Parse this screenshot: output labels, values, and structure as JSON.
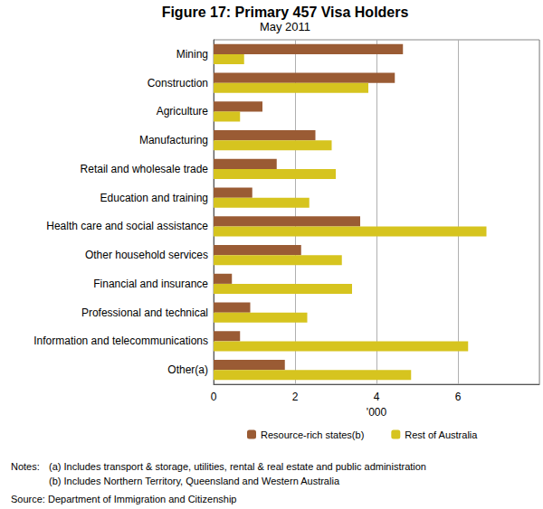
{
  "chart_data": {
    "type": "bar",
    "orientation": "horizontal",
    "title": "Figure 17: Primary 457 Visa Holders",
    "subtitle": "May 2011",
    "x_label": "'000",
    "categories": [
      "Mining",
      "Construction",
      "Agriculture",
      "Manufacturing",
      "Retail and wholesale trade",
      "Education and training",
      "Health care and social assistance",
      "Other household services",
      "Financial and insurance",
      "Professional and technical",
      "Information and telecommunications",
      "Other(a)"
    ],
    "series": [
      {
        "name": "Resource-rich states(b)",
        "color": "#9a5b34",
        "values": [
          4.65,
          4.45,
          1.2,
          2.5,
          1.55,
          0.95,
          3.6,
          2.15,
          0.45,
          0.9,
          0.65,
          1.75
        ]
      },
      {
        "name": "Rest of Australia",
        "color": "#d6c41f",
        "values": [
          0.75,
          3.8,
          0.65,
          2.9,
          3.0,
          2.35,
          6.7,
          3.15,
          3.4,
          2.3,
          6.25,
          4.85
        ]
      }
    ],
    "xlim": [
      0,
      8
    ],
    "xticks": [
      0,
      2,
      4,
      6
    ],
    "grid": true,
    "legend": "bottom",
    "notes_heading": "Notes:",
    "notes": [
      "(a) Includes transport & storage, utilities, rental & real estate and public administration",
      "(b) Includes Northern Territory, Queensland and Western Australia"
    ],
    "source": "Source: Department of Immigration and Citizenship"
  }
}
